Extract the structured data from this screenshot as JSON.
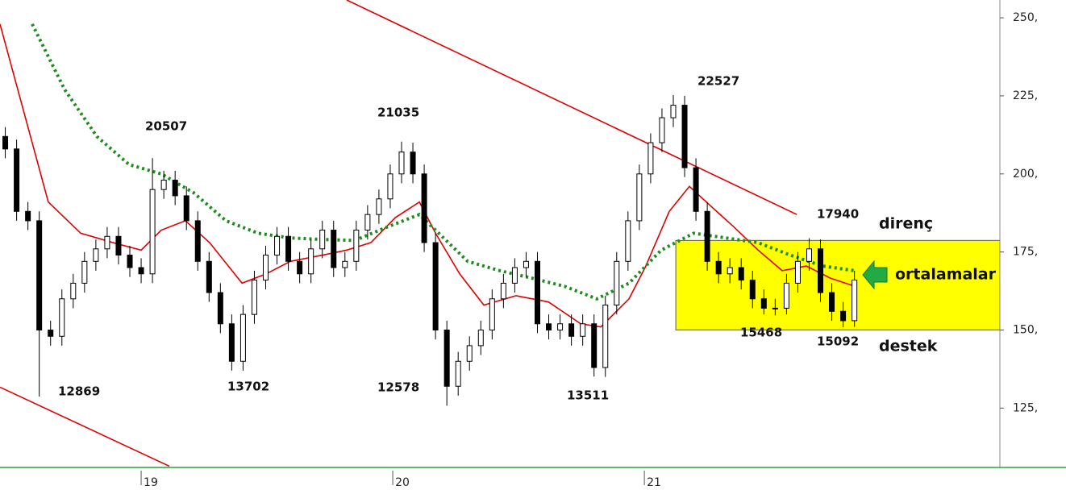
{
  "chart_data": {
    "type": "candlestick",
    "x": [
      18.46,
      18.505,
      18.55,
      18.595,
      18.64,
      18.685,
      18.73,
      18.775,
      18.82,
      18.865,
      18.91,
      18.955,
      19,
      19.045,
      19.09,
      19.135,
      19.18,
      19.225,
      19.27,
      19.315,
      19.36,
      19.405,
      19.45,
      19.495,
      19.54,
      19.585,
      19.63,
      19.675,
      19.72,
      19.765,
      19.81,
      19.855,
      19.9,
      19.945,
      19.99,
      20.035,
      20.08,
      20.125,
      20.17,
      20.215,
      20.26,
      20.305,
      20.35,
      20.395,
      20.44,
      20.485,
      20.53,
      20.575,
      20.62,
      20.665,
      20.71,
      20.755,
      20.8,
      20.845,
      20.89,
      20.935,
      20.98,
      21.025,
      21.07,
      21.115,
      21.16,
      21.205,
      21.25,
      21.295,
      21.34,
      21.385,
      21.43,
      21.475,
      21.52,
      21.565,
      21.61,
      21.655,
      21.7,
      21.745,
      21.79,
      21.835
    ],
    "open": [
      212,
      208,
      188,
      185,
      150,
      148,
      160,
      165,
      172,
      176,
      180,
      174,
      170,
      168,
      195,
      198,
      193,
      185,
      172,
      162,
      152,
      140,
      155,
      166,
      174,
      180,
      172,
      168,
      176,
      182,
      170,
      172,
      182,
      187,
      192,
      200,
      207,
      200,
      178,
      150,
      132,
      140,
      145,
      150,
      160,
      165,
      170,
      172,
      152,
      150,
      152,
      148,
      152,
      138,
      158,
      172,
      185,
      200,
      210,
      218,
      222,
      202,
      188,
      172,
      168,
      170,
      166,
      160,
      157,
      157,
      165,
      172,
      176,
      162,
      156,
      153
    ],
    "high": [
      215,
      211,
      191,
      188,
      153,
      163,
      168,
      175,
      179,
      183,
      183,
      177,
      173,
      205.07,
      201,
      201,
      196,
      188,
      175,
      165,
      155,
      158,
      169,
      177,
      183,
      183,
      175,
      179,
      185,
      185,
      175,
      185,
      190,
      195,
      203,
      210.35,
      210,
      203,
      181,
      153,
      143,
      148,
      153,
      163,
      168,
      173,
      175,
      175,
      155,
      155,
      155,
      155,
      155,
      161,
      175,
      188,
      203,
      213,
      221,
      225.27,
      225,
      205,
      191,
      175,
      173,
      173,
      169,
      163,
      160,
      168,
      175,
      179.4,
      179,
      165,
      159,
      169
    ],
    "low": [
      205,
      185,
      182,
      128.69,
      145,
      145,
      157,
      162,
      169,
      173,
      171,
      167,
      165,
      165,
      192,
      190,
      182,
      169,
      159,
      149,
      137.02,
      137,
      152,
      163,
      171,
      169,
      165,
      165,
      173,
      167,
      167,
      169,
      179,
      184,
      189,
      197,
      197,
      175,
      147,
      125.78,
      129,
      137,
      142,
      147,
      157,
      162,
      167,
      149,
      147,
      147,
      145,
      145,
      135.11,
      135,
      155,
      169,
      182,
      197,
      207,
      215,
      199,
      185,
      169,
      165,
      165,
      163,
      157,
      155,
      154.68,
      155,
      162,
      169,
      159,
      153,
      150.92,
      151
    ],
    "close": [
      208,
      188,
      185,
      150,
      148,
      160,
      165,
      172,
      176,
      180,
      174,
      170,
      168,
      195,
      198,
      193,
      185,
      172,
      162,
      152,
      140,
      155,
      166,
      174,
      180,
      172,
      168,
      176,
      182,
      170,
      172,
      182,
      187,
      192,
      200,
      207,
      200,
      178,
      150,
      132,
      140,
      145,
      150,
      160,
      165,
      170,
      172,
      152,
      150,
      152,
      148,
      152,
      138,
      158,
      172,
      185,
      200,
      210,
      218,
      222,
      202,
      188,
      172,
      168,
      170,
      166,
      160,
      157,
      157,
      165,
      172,
      176,
      162,
      156,
      153,
      166
    ],
    "moving_averages": [
      {
        "color": "#e00000",
        "style": "solid",
        "x": [
          18.439,
          18.631,
          18.76,
          18.888,
          19,
          19.08,
          19.176,
          19.272,
          19.401,
          19.497,
          19.593,
          19.721,
          19.817,
          19.913,
          20.01,
          20.106,
          20.17,
          20.266,
          20.362,
          20.49,
          20.619,
          20.747,
          20.827,
          20.939,
          21.003,
          21.099,
          21.179,
          21.26,
          21.356,
          21.452,
          21.548,
          21.644,
          21.74,
          21.837
        ],
        "values": [
          248,
          191,
          181,
          178,
          175.6,
          182,
          185,
          178,
          165,
          168,
          172,
          174,
          175.6,
          178,
          186,
          191,
          181,
          168,
          158,
          161,
          159,
          152,
          151,
          160,
          170,
          188,
          196,
          190,
          183,
          175.6,
          169,
          170.5,
          166.6,
          164
        ]
      },
      {
        "color": "#1e8c1e",
        "style": "dotted",
        "x": [
          18.567,
          18.696,
          18.824,
          18.952,
          19.08,
          19.208,
          19.337,
          19.465,
          19.593,
          19.721,
          19.849,
          19.978,
          20.106,
          20.202,
          20.298,
          20.426,
          20.554,
          20.683,
          20.811,
          20.939,
          21.067,
          21.196,
          21.324,
          21.452,
          21.58,
          21.708,
          21.837
        ],
        "values": [
          248,
          227,
          212,
          203,
          200,
          194,
          185,
          181,
          179.5,
          179,
          178.7,
          183,
          187,
          179.5,
          172,
          169,
          166.6,
          164,
          160,
          165,
          175.6,
          181,
          179.5,
          178,
          174,
          170.5,
          169
        ]
      }
    ],
    "trend_lines": [
      {
        "color": "#e00000",
        "x": [
          19.817,
          21.606
        ],
        "values": [
          255.7,
          187
        ]
      },
      {
        "color": "#e00000",
        "x": [
          18.439,
          19.112
        ],
        "values": [
          131.7,
          106.4
        ]
      }
    ],
    "highlight_box": {
      "color": "#ffff00",
      "x": [
        21.125,
        22.413
      ],
      "y": [
        150.05,
        178.7
      ]
    },
    "annotations": [
      "12869",
      "20507",
      "13702",
      "21035",
      "12578",
      "22527",
      "13511",
      "17940",
      "15468",
      "15092",
      "direnç",
      "ortalamalar",
      "destek"
    ],
    "xlim": [
      18.439,
      22.413
    ],
    "ylim": [
      106,
      255.7
    ],
    "xticks": [
      19,
      20,
      21
    ],
    "yticks": [
      {
        "value": 125,
        "label": "125,"
      },
      {
        "value": 150,
        "label": "150,"
      },
      {
        "value": 175,
        "label": "175,"
      },
      {
        "value": 200,
        "label": "200,"
      },
      {
        "value": 225,
        "label": "225,"
      },
      {
        "value": 250,
        "label": "250,"
      }
    ],
    "up_color": "#ffffff",
    "down_color": "#000000"
  }
}
